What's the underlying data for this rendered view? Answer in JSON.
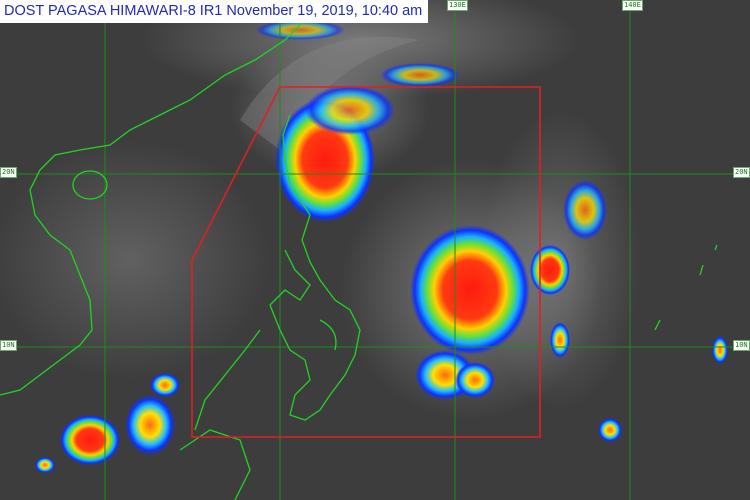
{
  "title": "DOST PAGASA HIMAWARI-8 IR1 November 19, 2019, 10:40 am",
  "grid_labels": {
    "lon_130": "130E",
    "lon_140": "140E",
    "lat_20_left": "20N",
    "lat_20_right": "20N",
    "lat_10_left": "10N",
    "lat_10_right": "10N"
  },
  "colors": {
    "title_text": "#1f2bb8",
    "coastline": "#22d422",
    "gridline": "#1f8a1f",
    "par_boundary": "#e02020",
    "cloud_cold": "#ff2a10",
    "cloud_mid": "#ffe000",
    "cloud_cool": "#1040ff"
  }
}
